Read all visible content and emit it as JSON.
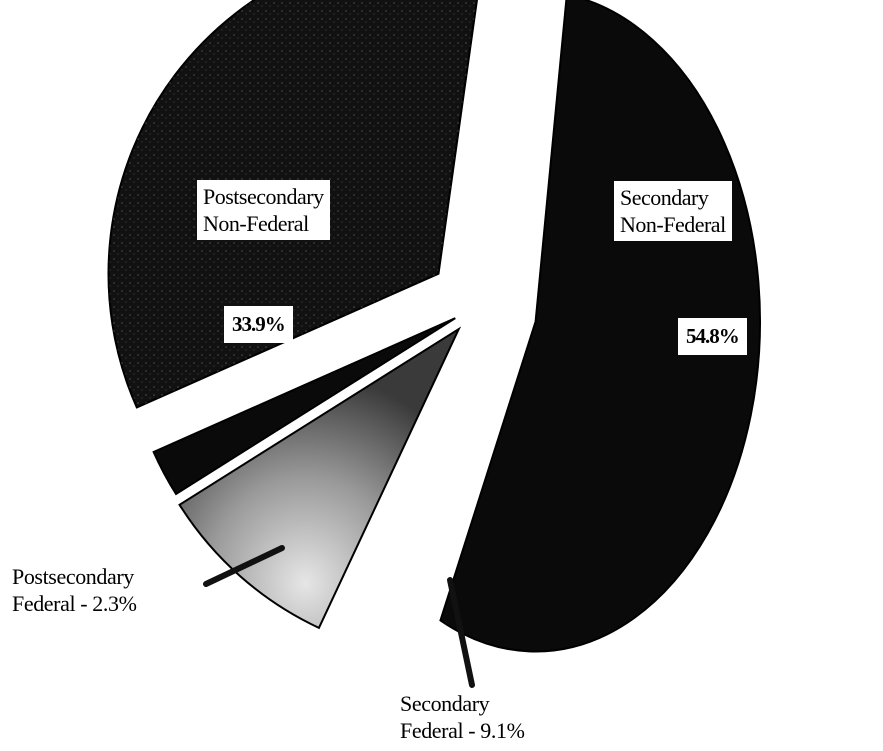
{
  "chart_data": {
    "type": "pie",
    "title": "",
    "slices": [
      {
        "name": "Secondary Non-Federal",
        "value": 54.8,
        "label_line1": "Secondary",
        "label_line2": "Non-Federal",
        "value_label": "54.8%",
        "color": "#0a0a0a"
      },
      {
        "name": "Secondary Federal",
        "value": 9.1,
        "label_line1": "Secondary",
        "label_line2": "Federal - 9.1%",
        "color": "#8c8c8c"
      },
      {
        "name": "Postsecondary Federal",
        "value": 2.3,
        "label_line1": "Postsecondary",
        "label_line2": "Federal - 2.3%",
        "color": "#0a0a0a"
      },
      {
        "name": "Postsecondary Non-Federal",
        "value": 33.9,
        "label_line1": "Postsecondary",
        "label_line2": "Non-Federal",
        "value_label": "33.9%",
        "color": "#111111"
      }
    ],
    "exploded": true,
    "legend": "none"
  }
}
